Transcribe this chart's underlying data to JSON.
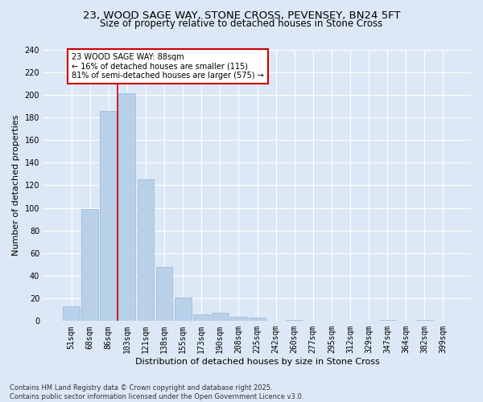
{
  "title_line1": "23, WOOD SAGE WAY, STONE CROSS, PEVENSEY, BN24 5FT",
  "title_line2": "Size of property relative to detached houses in Stone Cross",
  "xlabel": "Distribution of detached houses by size in Stone Cross",
  "ylabel": "Number of detached properties",
  "categories": [
    "51sqm",
    "68sqm",
    "86sqm",
    "103sqm",
    "121sqm",
    "138sqm",
    "155sqm",
    "173sqm",
    "190sqm",
    "208sqm",
    "225sqm",
    "242sqm",
    "260sqm",
    "277sqm",
    "295sqm",
    "312sqm",
    "329sqm",
    "347sqm",
    "364sqm",
    "382sqm",
    "399sqm"
  ],
  "values": [
    13,
    99,
    186,
    201,
    125,
    48,
    21,
    6,
    7,
    4,
    3,
    0,
    1,
    0,
    0,
    0,
    0,
    1,
    0,
    1,
    0
  ],
  "bar_color": "#b8d0e8",
  "bar_edge_color": "#9ab8d4",
  "ylim": [
    0,
    240
  ],
  "yticks": [
    0,
    20,
    40,
    60,
    80,
    100,
    120,
    140,
    160,
    180,
    200,
    220,
    240
  ],
  "annotation_text": "23 WOOD SAGE WAY: 88sqm\n← 16% of detached houses are smaller (115)\n81% of semi-detached houses are larger (575) →",
  "vline_x_index": 2.5,
  "annotation_box_facecolor": "#ffffff",
  "annotation_box_edgecolor": "#cc0000",
  "background_color": "#dce8f5",
  "grid_color": "#ffffff",
  "footer_text": "Contains HM Land Registry data © Crown copyright and database right 2025.\nContains public sector information licensed under the Open Government Licence v3.0.",
  "title_fontsize": 9.5,
  "subtitle_fontsize": 8.5,
  "axis_label_fontsize": 8,
  "tick_fontsize": 7,
  "annotation_fontsize": 7,
  "footer_fontsize": 6
}
